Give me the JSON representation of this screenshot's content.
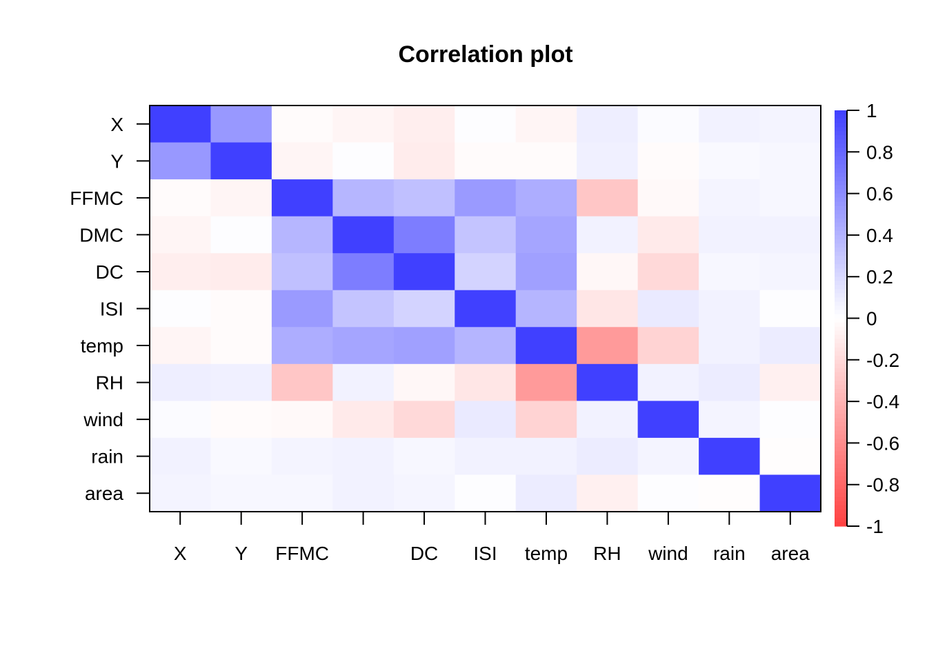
{
  "chart_data": {
    "type": "heatmap",
    "title": "Correlation plot",
    "variables": [
      "X",
      "Y",
      "FFMC",
      "DMC",
      "DC",
      "ISI",
      "temp",
      "RH",
      "wind",
      "rain",
      "area"
    ],
    "x_tick_labels": [
      "X",
      "Y",
      "FFMC",
      "",
      "DC",
      "ISI",
      "temp",
      "RH",
      "wind",
      "rain",
      "area"
    ],
    "y_tick_labels": [
      "X",
      "Y",
      "FFMC",
      "DMC",
      "DC",
      "ISI",
      "temp",
      "RH",
      "wind",
      "rain",
      "area"
    ],
    "matrix": [
      [
        1.0,
        0.54,
        -0.02,
        -0.05,
        -0.09,
        0.01,
        -0.05,
        0.09,
        0.02,
        0.07,
        0.06
      ],
      [
        0.54,
        1.0,
        -0.05,
        0.01,
        -0.1,
        -0.02,
        -0.02,
        0.08,
        -0.02,
        0.03,
        0.04
      ],
      [
        -0.02,
        -0.05,
        1.0,
        0.38,
        0.33,
        0.53,
        0.43,
        -0.3,
        -0.03,
        0.06,
        0.04
      ],
      [
        -0.05,
        0.01,
        0.38,
        1.0,
        0.68,
        0.31,
        0.47,
        0.07,
        -0.11,
        0.07,
        0.07
      ],
      [
        -0.09,
        -0.1,
        0.33,
        0.68,
        1.0,
        0.23,
        0.5,
        -0.04,
        -0.2,
        0.04,
        0.05
      ],
      [
        0.01,
        -0.02,
        0.53,
        0.31,
        0.23,
        1.0,
        0.39,
        -0.13,
        0.11,
        0.07,
        0.01
      ],
      [
        -0.05,
        -0.02,
        0.43,
        0.47,
        0.5,
        0.39,
        1.0,
        -0.53,
        -0.23,
        0.07,
        0.1
      ],
      [
        0.09,
        0.08,
        -0.3,
        0.07,
        -0.04,
        -0.13,
        -0.53,
        1.0,
        0.07,
        0.1,
        -0.08
      ],
      [
        0.02,
        -0.02,
        -0.03,
        -0.11,
        -0.2,
        0.11,
        -0.23,
        0.07,
        1.0,
        0.06,
        0.01
      ],
      [
        0.07,
        0.03,
        0.06,
        0.07,
        0.04,
        0.07,
        0.07,
        0.1,
        0.06,
        1.0,
        -0.01
      ],
      [
        0.06,
        0.04,
        0.04,
        0.07,
        0.05,
        0.01,
        0.1,
        -0.08,
        0.01,
        -0.01,
        1.0
      ]
    ],
    "colorbar": {
      "range": [
        -1,
        1
      ],
      "ticks": [
        1,
        0.8,
        0.6,
        0.4,
        0.2,
        0,
        -0.2,
        -0.4,
        -0.6,
        -0.8,
        -1
      ],
      "tick_labels": [
        "1",
        "0.8",
        "0.6",
        "0.4",
        "0.2",
        "0",
        "-0.2",
        "-0.4",
        "-0.6",
        "-0.8",
        "-1"
      ],
      "positive_color": "#4040ff",
      "zero_color": "#ffffff",
      "negative_color": "#ff4040"
    }
  }
}
